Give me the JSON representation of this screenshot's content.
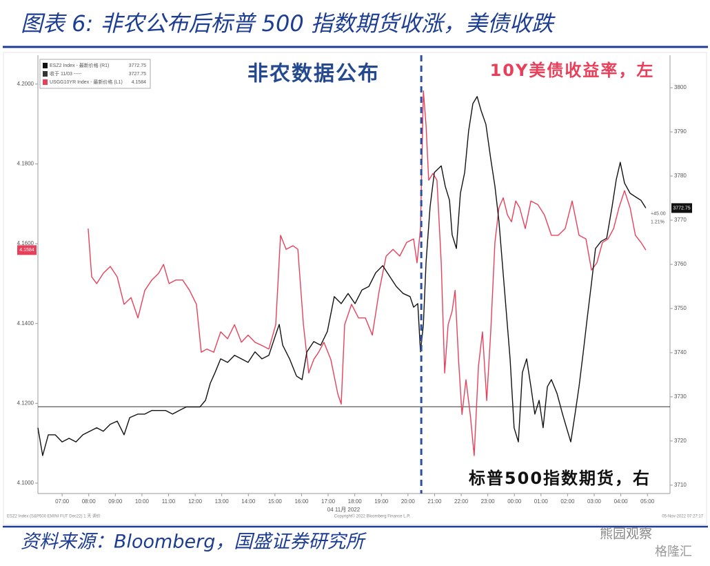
{
  "header": {
    "title": "图表 6:  非农公布后标普 500 指数期货收涨，美债收跌"
  },
  "chart_data": {
    "type": "line",
    "xlim": [
      6.09,
      29.85
    ],
    "xticks": [
      {
        "value": 7,
        "label": "07:00"
      },
      {
        "value": 8,
        "label": "08:00"
      },
      {
        "value": 9,
        "label": "09:00"
      },
      {
        "value": 10,
        "label": "10:00"
      },
      {
        "value": 11,
        "label": "11:00"
      },
      {
        "value": 12,
        "label": "12:00"
      },
      {
        "value": 13,
        "label": "13:00"
      },
      {
        "value": 14,
        "label": "14:00"
      },
      {
        "value": 15,
        "label": "15:00"
      },
      {
        "value": 16,
        "label": "16:00"
      },
      {
        "value": 17,
        "label": "17:00"
      },
      {
        "value": 18,
        "label": "18:00"
      },
      {
        "value": 19,
        "label": "19:00"
      },
      {
        "value": 20,
        "label": "20:00"
      },
      {
        "value": 21,
        "label": "21:00"
      },
      {
        "value": 22,
        "label": "22:00"
      },
      {
        "value": 23,
        "label": "23:00"
      },
      {
        "value": 24,
        "label": "00:00"
      },
      {
        "value": 25,
        "label": "01:00"
      },
      {
        "value": 26,
        "label": "02:00"
      },
      {
        "value": 27,
        "label": "03:00"
      },
      {
        "value": 28,
        "label": "04:00"
      },
      {
        "value": 29,
        "label": "05:00"
      }
    ],
    "x_date_label": "04 11月 2022",
    "ylim": [
      4.0974,
      4.2055
    ],
    "yticks": [
      {
        "value": 4.1,
        "label": "4.1000"
      },
      {
        "value": 4.12,
        "label": "4.1200"
      },
      {
        "value": 4.14,
        "label": "4.1400"
      },
      {
        "value": 4.16,
        "label": "4.1600"
      },
      {
        "value": 4.18,
        "label": "4.1800"
      },
      {
        "value": 4.2,
        "label": "4.2000"
      }
    ],
    "y2lim": [
      3708.1,
      3805.8
    ],
    "y2ticks": [
      3710,
      3720,
      3730,
      3740,
      3750,
      3760,
      3770,
      3780,
      3790,
      3800
    ],
    "grid": false,
    "series": [
      {
        "name": "USGG10YR Index - 最新价格 (L1)",
        "color": "#e8405a",
        "axis": "y",
        "end_label": "4.1584",
        "x": [
          7.98,
          8.11,
          8.3,
          8.55,
          8.81,
          9.07,
          9.33,
          9.59,
          9.85,
          10.11,
          10.37,
          10.63,
          10.81,
          11.02,
          11.27,
          11.53,
          11.79,
          12.05,
          12.23,
          12.44,
          12.7,
          12.96,
          13.22,
          13.48,
          13.74,
          13.99,
          14.25,
          14.51,
          14.77,
          15.03,
          15.21,
          15.42,
          15.68,
          15.86,
          16.07,
          16.27,
          16.46,
          16.64,
          16.84,
          17.1,
          17.36,
          17.49,
          17.62,
          17.88,
          18.14,
          18.4,
          18.66,
          18.92,
          19.18,
          19.44,
          19.69,
          19.95,
          20.21,
          20.34,
          20.47,
          20.58,
          20.68,
          20.78,
          20.94,
          21.09,
          21.25,
          21.38,
          21.51,
          21.66,
          21.77,
          21.9,
          22.03,
          22.18,
          22.34,
          22.49,
          22.65,
          22.8,
          22.96,
          23.11,
          23.27,
          23.42,
          23.58,
          23.74,
          23.89,
          24.05,
          24.2,
          24.41,
          24.62,
          24.88,
          25.13,
          25.39,
          25.65,
          25.91,
          26.17,
          26.43,
          26.69,
          26.9,
          27.1,
          27.31,
          27.52,
          27.73,
          27.93,
          28.14,
          28.35,
          28.55,
          28.76,
          28.94
        ],
        "values": [
          4.1638,
          4.1517,
          4.15,
          4.1526,
          4.1543,
          4.1517,
          4.1448,
          4.1465,
          4.1414,
          4.1483,
          4.1509,
          4.1526,
          4.1548,
          4.15,
          4.1509,
          4.1509,
          4.1483,
          4.1448,
          4.1328,
          4.1336,
          4.1328,
          4.1379,
          4.1362,
          4.1397,
          4.1353,
          4.1371,
          4.1353,
          4.1345,
          4.1336,
          4.1397,
          4.1621,
          4.1586,
          4.1595,
          4.1586,
          4.1397,
          4.1276,
          4.131,
          4.1328,
          4.1353,
          4.131,
          4.1224,
          4.1198,
          4.1397,
          4.1448,
          4.1414,
          4.1414,
          4.1371,
          4.1483,
          4.1569,
          4.1586,
          4.1569,
          4.1603,
          4.1612,
          4.1552,
          4.1638,
          4.1983,
          4.1896,
          4.1759,
          4.1776,
          4.1759,
          4.1552,
          4.1276,
          4.1397,
          4.1431,
          4.1483,
          4.131,
          4.1172,
          4.1259,
          4.1172,
          4.1069,
          4.1293,
          4.1379,
          4.1207,
          4.1379,
          4.1603,
          4.169,
          4.1715,
          4.1672,
          4.1655,
          4.1707,
          4.169,
          4.1638,
          4.1707,
          4.1698,
          4.1672,
          4.1621,
          4.1621,
          4.1638,
          4.1707,
          4.1621,
          4.1612,
          4.1534,
          4.1552,
          4.1603,
          4.1612,
          4.1638,
          4.169,
          4.1733,
          4.169,
          4.1621,
          4.1603,
          4.1584
        ]
      },
      {
        "name": "ESZ2 Index - 最新价格 (R1)",
        "color": "#111111",
        "axis": "y2",
        "end_label": "3772.75",
        "change": "+45.00",
        "change_pct": "1.21%",
        "x": [
          6.09,
          6.27,
          6.48,
          6.74,
          7.0,
          7.26,
          7.52,
          7.78,
          8.04,
          8.3,
          8.55,
          8.81,
          9.07,
          9.33,
          9.54,
          9.85,
          10.11,
          10.37,
          10.63,
          10.89,
          11.15,
          11.4,
          11.66,
          11.92,
          12.18,
          12.39,
          12.57,
          12.75,
          12.96,
          13.22,
          13.48,
          13.74,
          13.99,
          14.25,
          14.51,
          14.77,
          15.03,
          15.16,
          15.29,
          15.55,
          15.81,
          16.02,
          16.2,
          16.46,
          16.72,
          16.97,
          17.23,
          17.49,
          17.75,
          18.01,
          18.27,
          18.53,
          18.79,
          19.05,
          19.31,
          19.56,
          19.82,
          20.08,
          20.21,
          20.37,
          20.47,
          20.58,
          20.68,
          20.83,
          20.99,
          21.25,
          21.4,
          21.56,
          21.66,
          21.82,
          21.97,
          22.13,
          22.28,
          22.44,
          22.6,
          22.75,
          22.93,
          23.11,
          23.27,
          23.42,
          23.63,
          23.84,
          23.99,
          24.15,
          24.3,
          24.46,
          24.62,
          24.77,
          24.93,
          25.08,
          25.24,
          25.39,
          25.6,
          25.81,
          25.96,
          26.12,
          26.28,
          26.43,
          26.59,
          26.74,
          26.9,
          27.05,
          27.26,
          27.47,
          27.67,
          27.83,
          27.98,
          28.14,
          28.35,
          28.55,
          28.76,
          28.94
        ],
        "values": [
          3723.0,
          3716.7,
          3721.4,
          3721.4,
          3719.8,
          3720.6,
          3719.8,
          3721.4,
          3722.2,
          3723.0,
          3722.2,
          3723.8,
          3724.5,
          3721.4,
          3725.3,
          3726.1,
          3726.1,
          3726.9,
          3726.9,
          3726.9,
          3726.1,
          3726.9,
          3727.7,
          3727.7,
          3727.7,
          3729.2,
          3733.1,
          3735.5,
          3738.6,
          3737.8,
          3739.4,
          3738.6,
          3737.8,
          3740.2,
          3738.6,
          3739.4,
          3744.1,
          3746.4,
          3741.7,
          3738.6,
          3734.7,
          3733.9,
          3740.2,
          3742.5,
          3741.7,
          3744.8,
          3752.7,
          3751.1,
          3753.4,
          3751.1,
          3754.2,
          3755.0,
          3758.1,
          3759.7,
          3757.3,
          3755.0,
          3753.4,
          3752.7,
          3750.3,
          3751.1,
          3740.2,
          3746.4,
          3760.5,
          3773.0,
          3780.8,
          3782.3,
          3777.7,
          3774.5,
          3766.7,
          3763.6,
          3776.1,
          3780.8,
          3790.2,
          3796.4,
          3798.0,
          3794.8,
          3791.7,
          3783.9,
          3777.7,
          3769.8,
          3754.2,
          3738.6,
          3723.0,
          3719.8,
          3735.5,
          3738.6,
          3732.3,
          3726.1,
          3729.2,
          3723.0,
          3732.3,
          3733.9,
          3730.8,
          3726.1,
          3723.0,
          3719.8,
          3726.1,
          3732.3,
          3740.2,
          3748.0,
          3755.8,
          3763.6,
          3765.2,
          3765.9,
          3773.0,
          3779.2,
          3783.1,
          3778.4,
          3776.1,
          3775.3,
          3774.5,
          3772.75
        ]
      }
    ],
    "ref_line": {
      "name": "收于 11/03 -----",
      "value": 3727.75,
      "axis": "y2",
      "color": "#333333"
    },
    "event_line": {
      "x": 20.5,
      "color": "#2a4ea0"
    },
    "annotations": [
      {
        "text": "非农数据公布",
        "color": "#24498f"
      },
      {
        "text": "10Y美债收益率，左",
        "color": "#e8405a"
      },
      {
        "text": "标普500指数期货，右",
        "color": "#111111"
      }
    ],
    "footer": [
      "ESZ2 Index (S&P500 EMINI FUT Dec22) 1 天 调价",
      "Copyright© 2022 Bloomberg Finance L.P.",
      "05-Nov-2022 07:27:17"
    ]
  },
  "source": "资料来源：Bloomberg，国盛证券研究所",
  "watermarks": [
    "熊园观察",
    "格隆汇"
  ]
}
